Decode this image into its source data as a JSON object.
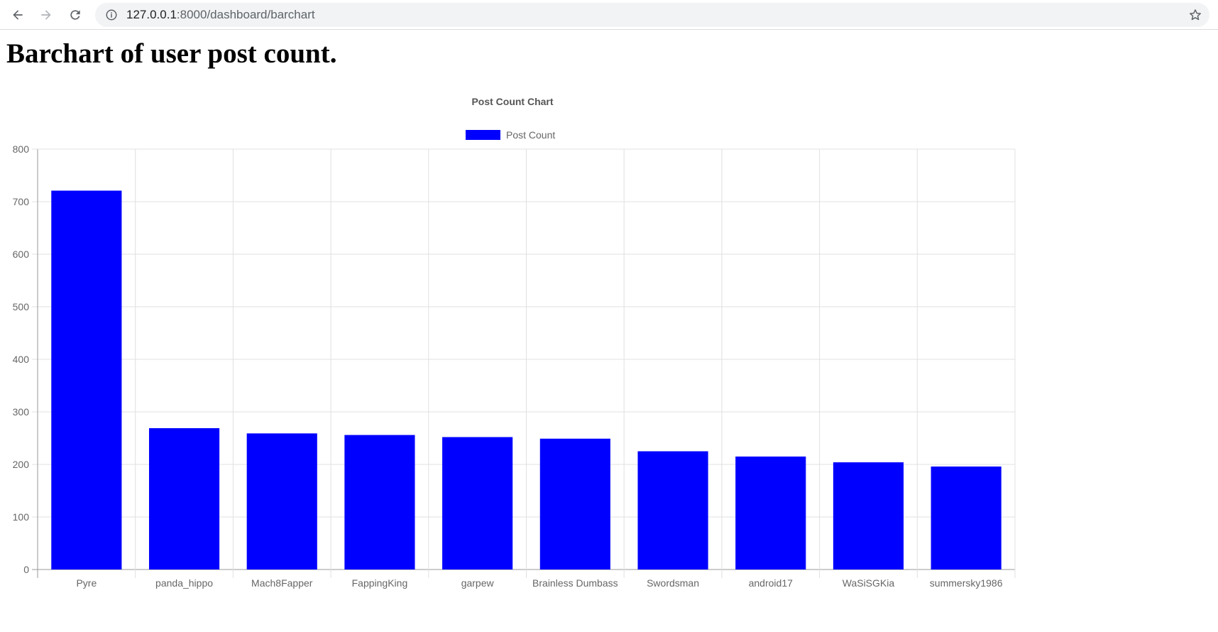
{
  "browser": {
    "url_host": "127.0.0.1",
    "url_rest": ":8000/dashboard/barchart",
    "icons": [
      "back-arrow-icon",
      "forward-arrow-icon",
      "reload-icon",
      "info-icon",
      "star-icon"
    ]
  },
  "page": {
    "title": "Barchart of user post count."
  },
  "chart_data": {
    "type": "bar",
    "title": "Post Count Chart",
    "categories": [
      "Pyre",
      "panda_hippo",
      "Mach8Fapper",
      "FappingKing",
      "garpew",
      "Brainless Dumbass",
      "Swordsman",
      "android17",
      "WaSiSGKia",
      "summersky1986"
    ],
    "series": [
      {
        "name": "Post Count",
        "color": "#0000ff",
        "values": [
          721,
          269,
          259,
          256,
          252,
          249,
          225,
          215,
          204,
          196
        ]
      }
    ],
    "y_ticks": [
      0,
      100,
      200,
      300,
      400,
      500,
      600,
      700,
      800
    ],
    "ylim": [
      0,
      800
    ],
    "xlabel": "",
    "ylabel": "",
    "grid": true,
    "legend": "top"
  }
}
